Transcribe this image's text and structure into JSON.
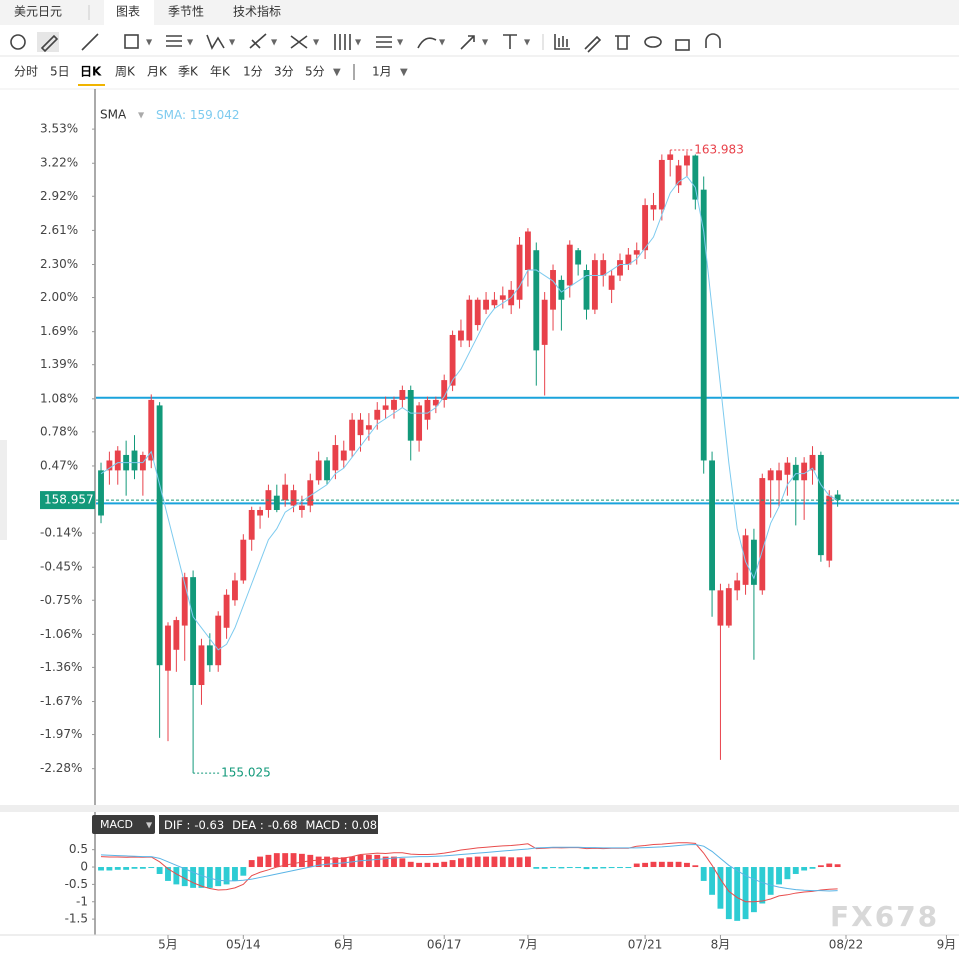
{
  "header": {
    "tabs": [
      "美元日元",
      "图表",
      "季节性",
      "技术指标"
    ]
  },
  "periods": [
    "分时",
    "5日",
    "日K",
    "周K",
    "月K",
    "季K",
    "年K",
    "1分",
    "3分",
    "5分"
  ],
  "range": "1月",
  "watermark": "FX678",
  "chart_data": [
    {
      "type": "candlestick",
      "up_color": "#e8414a",
      "down_color": "#12997a",
      "sma_name": "SMA",
      "sma_label": "SMA:",
      "sma_value": 159.042,
      "sma_color": "#7ecbef",
      "last_price": 158.957,
      "high_label": 163.983,
      "low_label": 155.025,
      "hlines": [
        1.09,
        0.13
      ],
      "hline_color": "#1aa3dc",
      "xlim": [
        -0.6,
        102.5
      ],
      "ylim": [
        -2.61,
        3.84
      ],
      "xticks": [
        {
          "value": 8,
          "label": "5月"
        },
        {
          "value": 17,
          "label": "05/14"
        },
        {
          "value": 29,
          "label": "6月"
        },
        {
          "value": 41,
          "label": "06/17"
        },
        {
          "value": 51,
          "label": "7月"
        },
        {
          "value": 65,
          "label": "07/21"
        },
        {
          "value": 74,
          "label": "8月"
        },
        {
          "value": 89,
          "label": "08/22"
        },
        {
          "value": 101,
          "label": "9月"
        }
      ],
      "yticks": [
        {
          "value": 3.53,
          "label": "3.53%"
        },
        {
          "value": 3.22,
          "label": "3.22%"
        },
        {
          "value": 2.92,
          "label": "2.92%"
        },
        {
          "value": 2.61,
          "label": "2.61%"
        },
        {
          "value": 2.3,
          "label": "2.30%"
        },
        {
          "value": 2.0,
          "label": "2.00%"
        },
        {
          "value": 1.69,
          "label": "1.69%"
        },
        {
          "value": 1.39,
          "label": "1.39%"
        },
        {
          "value": 1.08,
          "label": "1.08%"
        },
        {
          "value": 0.78,
          "label": "0.78%"
        },
        {
          "value": 0.47,
          "label": "0.47%"
        },
        {
          "value": -0.14,
          "label": "-0.14%"
        },
        {
          "value": -0.45,
          "label": "-0.45%"
        },
        {
          "value": -0.75,
          "label": "-0.75%"
        },
        {
          "value": -1.06,
          "label": "-1.06%"
        },
        {
          "value": -1.36,
          "label": "-1.36%"
        },
        {
          "value": -1.67,
          "label": "-1.67%"
        },
        {
          "value": -1.97,
          "label": "-1.97%"
        },
        {
          "value": -2.28,
          "label": "-2.28%"
        }
      ],
      "ohlc": [
        [
          0.43,
          0.5,
          -0.05,
          0.02
        ],
        [
          0.43,
          0.6,
          0.3,
          0.52
        ],
        [
          0.43,
          0.65,
          0.3,
          0.61
        ],
        [
          0.57,
          0.7,
          0.2,
          0.43
        ],
        [
          0.61,
          0.75,
          0.35,
          0.43
        ],
        [
          0.43,
          0.6,
          0.2,
          0.57
        ],
        [
          0.52,
          1.12,
          0.45,
          1.07
        ],
        [
          1.02,
          1.05,
          -2.0,
          -1.34
        ],
        [
          -1.39,
          -0.95,
          -2.03,
          -0.98
        ],
        [
          -1.2,
          -0.9,
          -1.4,
          -0.93
        ],
        [
          -0.98,
          -0.5,
          -1.3,
          -0.54
        ],
        [
          -0.54,
          -0.48,
          -2.32,
          -1.52
        ],
        [
          -1.52,
          -1.1,
          -1.7,
          -1.16
        ],
        [
          -1.16,
          -1.05,
          -1.4,
          -1.34
        ],
        [
          -1.34,
          -0.85,
          -1.4,
          -0.89
        ],
        [
          -1.0,
          -0.65,
          -1.1,
          -0.7
        ],
        [
          -0.75,
          -0.5,
          -0.8,
          -0.57
        ],
        [
          -0.57,
          -0.15,
          -0.6,
          -0.2
        ],
        [
          -0.2,
          0.1,
          -0.3,
          0.07
        ],
        [
          0.02,
          0.1,
          -0.1,
          0.07
        ],
        [
          0.07,
          0.3,
          0.0,
          0.25
        ],
        [
          0.2,
          0.3,
          0.05,
          0.07
        ],
        [
          0.16,
          0.4,
          0.1,
          0.3
        ],
        [
          0.11,
          0.3,
          0.05,
          0.25
        ],
        [
          0.07,
          0.2,
          0.0,
          0.11
        ],
        [
          0.11,
          0.4,
          0.05,
          0.34
        ],
        [
          0.34,
          0.6,
          0.3,
          0.52
        ],
        [
          0.52,
          0.55,
          0.3,
          0.34
        ],
        [
          0.43,
          0.75,
          0.35,
          0.66
        ],
        [
          0.52,
          0.7,
          0.45,
          0.61
        ],
        [
          0.61,
          0.95,
          0.55,
          0.89
        ],
        [
          0.75,
          0.95,
          0.6,
          0.89
        ],
        [
          0.8,
          0.95,
          0.7,
          0.84
        ],
        [
          0.89,
          1.05,
          0.8,
          0.98
        ],
        [
          0.98,
          1.1,
          0.9,
          1.02
        ],
        [
          0.98,
          1.1,
          0.9,
          1.07
        ],
        [
          1.07,
          1.2,
          1.0,
          1.16
        ],
        [
          1.16,
          1.2,
          0.52,
          0.7
        ],
        [
          0.7,
          1.05,
          0.6,
          1.02
        ],
        [
          0.89,
          1.1,
          0.8,
          1.07
        ],
        [
          1.02,
          1.1,
          0.95,
          1.07
        ],
        [
          1.07,
          1.3,
          1.0,
          1.25
        ],
        [
          1.2,
          1.7,
          1.15,
          1.66
        ],
        [
          1.61,
          1.8,
          1.55,
          1.7
        ],
        [
          1.61,
          2.02,
          1.55,
          1.98
        ],
        [
          1.75,
          2.0,
          1.7,
          1.98
        ],
        [
          1.89,
          2.05,
          1.85,
          1.98
        ],
        [
          1.93,
          2.05,
          1.9,
          1.98
        ],
        [
          1.98,
          2.1,
          1.9,
          2.02
        ],
        [
          1.93,
          2.15,
          1.85,
          2.07
        ],
        [
          1.98,
          2.55,
          1.9,
          2.48
        ],
        [
          2.25,
          2.63,
          2.1,
          2.6
        ],
        [
          2.43,
          2.5,
          1.2,
          1.52
        ],
        [
          1.57,
          2.05,
          1.11,
          1.98
        ],
        [
          1.89,
          2.3,
          1.7,
          2.25
        ],
        [
          2.16,
          2.2,
          1.7,
          1.98
        ],
        [
          2.11,
          2.52,
          2.0,
          2.48
        ],
        [
          2.43,
          2.45,
          2.2,
          2.3
        ],
        [
          2.25,
          2.3,
          1.8,
          1.89
        ],
        [
          1.89,
          2.4,
          1.85,
          2.34
        ],
        [
          2.2,
          2.4,
          2.1,
          2.34
        ],
        [
          2.07,
          2.25,
          1.95,
          2.2
        ],
        [
          2.2,
          2.4,
          2.15,
          2.34
        ],
        [
          2.3,
          2.45,
          2.25,
          2.39
        ],
        [
          2.39,
          2.5,
          2.3,
          2.43
        ],
        [
          2.43,
          2.9,
          2.35,
          2.84
        ],
        [
          2.8,
          2.95,
          2.7,
          2.84
        ],
        [
          2.8,
          3.3,
          2.7,
          3.25
        ],
        [
          3.25,
          3.34,
          3.1,
          3.3
        ],
        [
          3.02,
          3.25,
          2.95,
          3.2
        ],
        [
          3.2,
          3.33,
          3.1,
          3.29
        ],
        [
          3.29,
          3.3,
          2.8,
          2.89
        ],
        [
          2.98,
          3.1,
          0.4,
          0.52
        ],
        [
          0.52,
          0.6,
          -0.9,
          -0.66
        ],
        [
          -0.98,
          -0.6,
          -2.2,
          -0.66
        ],
        [
          -0.98,
          -0.6,
          -1.0,
          -0.64
        ],
        [
          -0.66,
          -0.5,
          -0.75,
          -0.57
        ],
        [
          -0.61,
          -0.1,
          -0.7,
          -0.16
        ],
        [
          -0.2,
          -0.1,
          -1.29,
          -0.61
        ],
        [
          -0.66,
          0.4,
          -0.7,
          0.36
        ],
        [
          0.34,
          0.45,
          0.0,
          0.43
        ],
        [
          0.34,
          0.5,
          0.1,
          0.43
        ],
        [
          0.39,
          0.55,
          0.2,
          0.5
        ],
        [
          0.48,
          0.55,
          -0.07,
          0.34
        ],
        [
          0.34,
          0.55,
          -0.02,
          0.5
        ],
        [
          0.43,
          0.65,
          0.3,
          0.57
        ],
        [
          0.57,
          0.6,
          -0.4,
          -0.34
        ],
        [
          -0.39,
          0.25,
          -0.45,
          0.2
        ],
        [
          0.21,
          0.25,
          0.1,
          0.16
        ]
      ],
      "sma": [
        0.4,
        0.45,
        0.5,
        0.5,
        0.5,
        0.5,
        0.6,
        0.3,
        0.0,
        -0.3,
        -0.6,
        -0.9,
        -1.0,
        -1.1,
        -1.2,
        -1.15,
        -1.0,
        -0.8,
        -0.6,
        -0.4,
        -0.2,
        -0.1,
        0.05,
        0.1,
        0.15,
        0.2,
        0.25,
        0.3,
        0.4,
        0.45,
        0.55,
        0.65,
        0.75,
        0.85,
        0.9,
        0.95,
        1.0,
        0.95,
        0.95,
        0.95,
        1.0,
        1.1,
        1.25,
        1.35,
        1.5,
        1.65,
        1.8,
        1.9,
        1.95,
        2.0,
        2.1,
        2.25,
        2.25,
        2.2,
        2.15,
        2.05,
        2.1,
        2.15,
        2.2,
        2.2,
        2.2,
        2.25,
        2.3,
        2.3,
        2.35,
        2.45,
        2.55,
        2.75,
        2.95,
        3.05,
        3.1,
        3.0,
        2.6,
        1.9,
        1.2,
        0.5,
        -0.1,
        -0.4,
        -0.55,
        -0.3,
        -0.05,
        0.1,
        0.3,
        0.4,
        0.4,
        0.45,
        0.3,
        0.2,
        0.16
      ]
    },
    {
      "type": "macd",
      "name": "MACD",
      "up_color": "#f0424c",
      "down_color": "#2dccd3",
      "legend": [
        {
          "label": "DIF :",
          "value": -0.63
        },
        {
          "label": "DEA :",
          "value": -0.68
        },
        {
          "label": "MACD :",
          "value": 0.08
        }
      ],
      "ylim": [
        -1.9,
        0.98
      ],
      "yticks": [
        0.5,
        0,
        -0.5,
        -1,
        -1.5
      ],
      "histogram": [
        -0.1,
        -0.1,
        -0.08,
        -0.08,
        -0.05,
        -0.05,
        -0.02,
        -0.2,
        -0.4,
        -0.5,
        -0.55,
        -0.6,
        -0.6,
        -0.6,
        -0.55,
        -0.5,
        -0.4,
        -0.25,
        0.2,
        0.3,
        0.35,
        0.4,
        0.4,
        0.4,
        0.38,
        0.35,
        0.3,
        0.3,
        0.28,
        0.28,
        0.3,
        0.35,
        0.35,
        0.35,
        0.3,
        0.3,
        0.25,
        0.15,
        0.12,
        0.12,
        0.12,
        0.15,
        0.2,
        0.25,
        0.28,
        0.3,
        0.3,
        0.3,
        0.3,
        0.28,
        0.28,
        0.3,
        -0.05,
        -0.05,
        -0.03,
        -0.04,
        -0.02,
        -0.03,
        -0.06,
        -0.05,
        -0.04,
        -0.03,
        -0.02,
        -0.02,
        0.1,
        0.12,
        0.15,
        0.15,
        0.15,
        0.15,
        0.12,
        0.05,
        -0.4,
        -0.8,
        -1.2,
        -1.5,
        -1.55,
        -1.5,
        -1.3,
        -1.05,
        -0.8,
        -0.5,
        -0.35,
        -0.2,
        -0.1,
        -0.05,
        0.05,
        0.1,
        0.08
      ],
      "series": [
        {
          "name": "DIF",
          "color": "#e84c4c",
          "values": [
            0.3,
            0.29,
            0.29,
            0.28,
            0.29,
            0.28,
            0.29,
            0.15,
            -0.05,
            -0.2,
            -0.33,
            -0.45,
            -0.55,
            -0.62,
            -0.66,
            -0.65,
            -0.6,
            -0.5,
            -0.25,
            -0.15,
            -0.08,
            0.0,
            0.05,
            0.1,
            0.14,
            0.18,
            0.2,
            0.23,
            0.24,
            0.26,
            0.3,
            0.36,
            0.38,
            0.4,
            0.39,
            0.41,
            0.41,
            0.37,
            0.36,
            0.36,
            0.37,
            0.4,
            0.44,
            0.49,
            0.52,
            0.55,
            0.57,
            0.59,
            0.61,
            0.62,
            0.64,
            0.67,
            0.53,
            0.54,
            0.56,
            0.55,
            0.56,
            0.56,
            0.53,
            0.54,
            0.53,
            0.54,
            0.54,
            0.54,
            0.6,
            0.62,
            0.65,
            0.66,
            0.68,
            0.7,
            0.7,
            0.68,
            0.4,
            0.05,
            -0.35,
            -0.7,
            -0.88,
            -1.0,
            -1.0,
            -0.98,
            -0.92,
            -0.83,
            -0.8,
            -0.75,
            -0.72,
            -0.7,
            -0.66,
            -0.64,
            -0.63
          ]
        },
        {
          "name": "DEA",
          "color": "#5ab4e6",
          "values": [
            0.35,
            0.34,
            0.33,
            0.32,
            0.31,
            0.3,
            0.3,
            0.25,
            0.15,
            0.05,
            -0.05,
            -0.15,
            -0.25,
            -0.32,
            -0.38,
            -0.4,
            -0.4,
            -0.38,
            -0.35,
            -0.3,
            -0.25,
            -0.2,
            -0.15,
            -0.1,
            -0.05,
            0.0,
            0.05,
            0.08,
            0.1,
            0.12,
            0.15,
            0.18,
            0.2,
            0.22,
            0.24,
            0.26,
            0.28,
            0.29,
            0.3,
            0.3,
            0.31,
            0.32,
            0.34,
            0.36,
            0.38,
            0.4,
            0.42,
            0.44,
            0.46,
            0.48,
            0.5,
            0.52,
            0.55,
            0.56,
            0.57,
            0.57,
            0.57,
            0.57,
            0.56,
            0.56,
            0.55,
            0.55,
            0.55,
            0.55,
            0.55,
            0.56,
            0.57,
            0.58,
            0.6,
            0.62,
            0.64,
            0.65,
            0.6,
            0.45,
            0.25,
            0.05,
            -0.1,
            -0.25,
            -0.35,
            -0.45,
            -0.52,
            -0.58,
            -0.62,
            -0.65,
            -0.67,
            -0.68,
            -0.68,
            -0.69,
            -0.68
          ]
        }
      ]
    }
  ]
}
